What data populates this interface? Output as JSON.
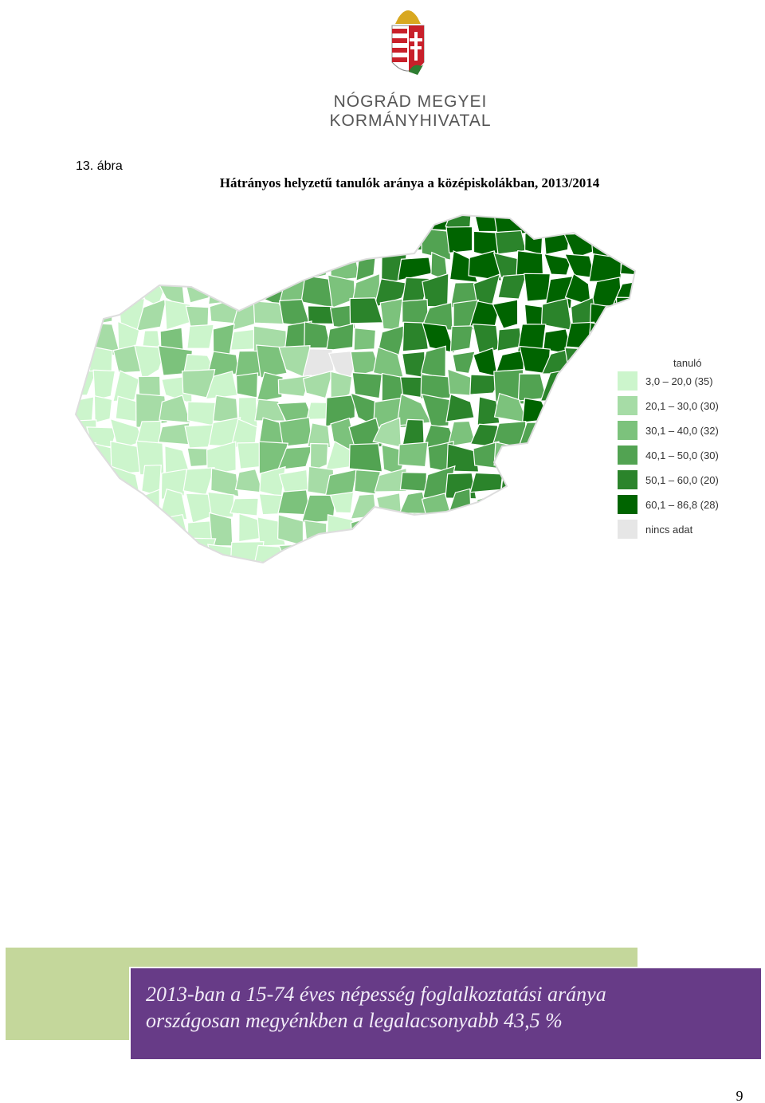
{
  "header": {
    "org_line1": "NÓGRÁD MEGYEI",
    "org_line2": "KORMÁNYHIVATAL"
  },
  "figure": {
    "label": "13. ábra",
    "title": "Hátrányos helyzetű tanulók aránya a középiskolákban, 2013/2014",
    "legend": {
      "title": "tanuló",
      "items": [
        {
          "label": "3,0 – 20,0 (35)",
          "color": "#ccf5cc"
        },
        {
          "label": "20,1 – 30,0 (30)",
          "color": "#a6dca6"
        },
        {
          "label": "30,1 – 40,0 (32)",
          "color": "#7cc27c"
        },
        {
          "label": "40,1 – 50,0 (30)",
          "color": "#52a352"
        },
        {
          "label": "50,1 – 60,0 (20)",
          "color": "#2b842b"
        },
        {
          "label": "60,1 – 86,8 (28)",
          "color": "#006400"
        },
        {
          "label": "nincs adat",
          "color": "#e6e6e6"
        }
      ]
    }
  },
  "callout": {
    "lines": [
      "2013-ban a 15-74 éves népesség foglalkoztatási aránya",
      "országosan megyénkben a legalacsonyabb 43,5 %"
    ]
  },
  "page_number": "9"
}
